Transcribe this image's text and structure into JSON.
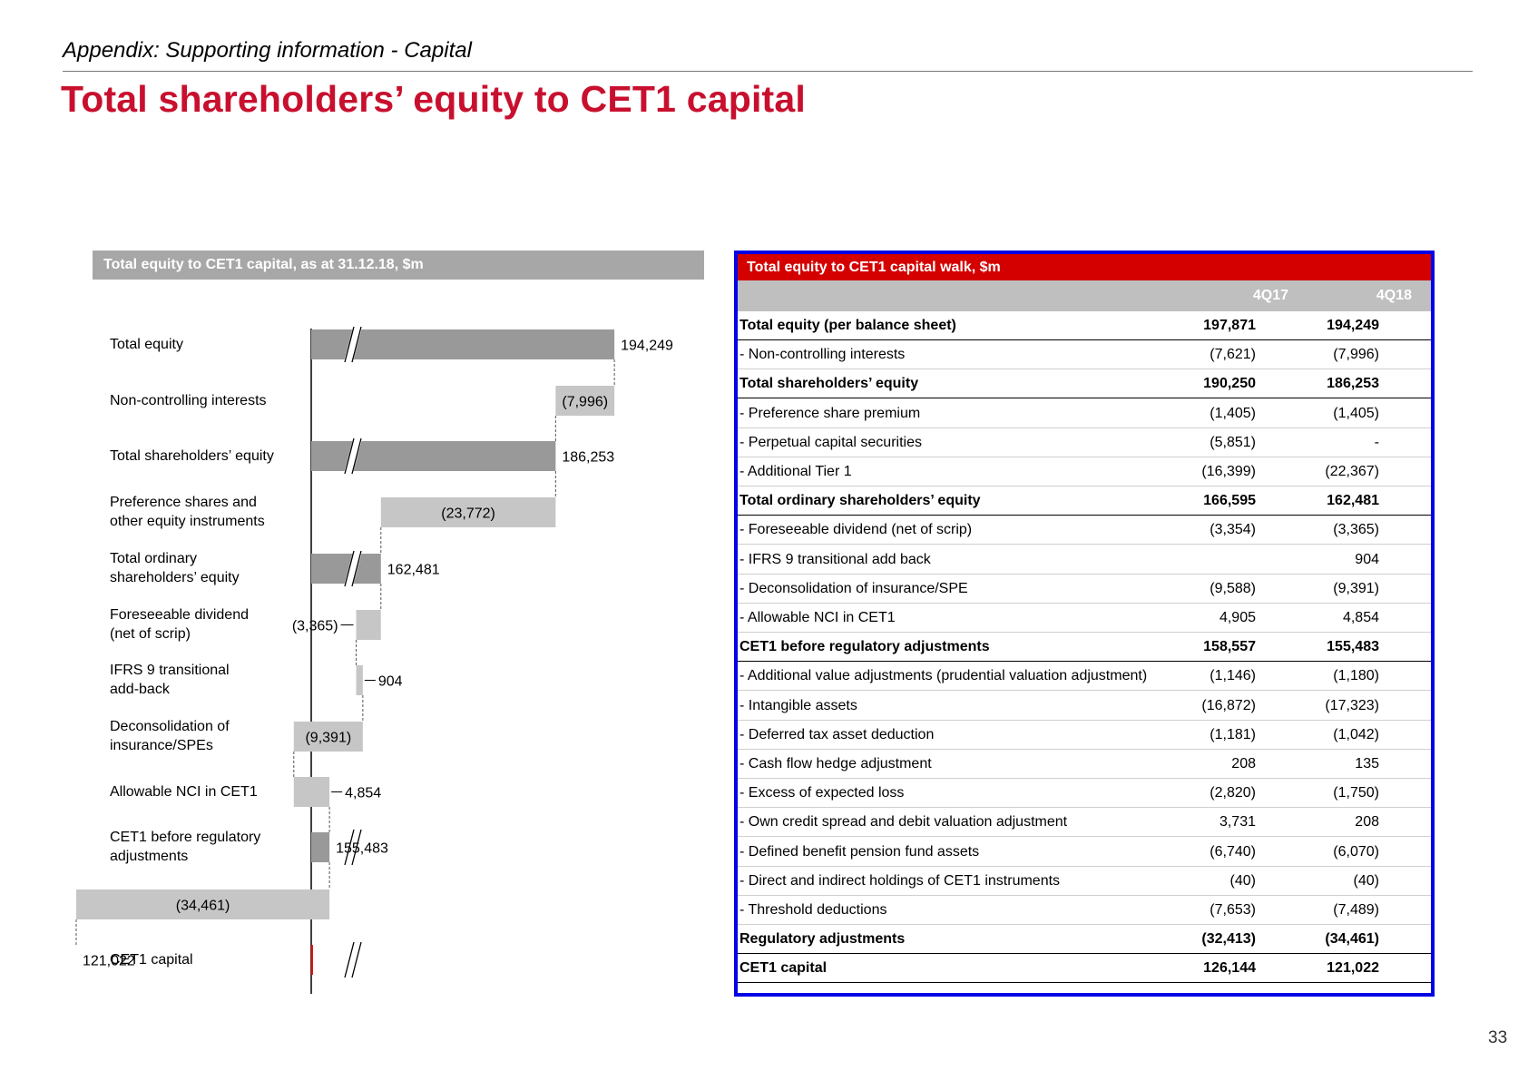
{
  "header": {
    "section": "Appendix: Supporting information - Capital",
    "title": "Total shareholders’ equity to CET1 capital"
  },
  "page_number": "33",
  "colors": {
    "title_red": "#c8102e",
    "bar_dark": "#999999",
    "bar_light": "#c6c6c6",
    "bar_cet1": "#ff0000",
    "table_header": "#d40000",
    "panel_border": "#0000e6"
  },
  "left_panel": {
    "header": "Total equity to CET1 capital, as at 31.12.18, $m"
  },
  "chart_data": {
    "type": "bar",
    "orientation": "horizontal-waterfall",
    "title": "Total equity to CET1 capital, as at 31.12.18, $m",
    "axis_break": true,
    "categories": [
      "Total equity",
      "Non-controlling interests",
      "Total shareholders’ equity",
      "Preference shares and other equity instruments",
      "Total ordinary shareholders’ equity",
      "Foreseeable dividend (net of scrip)",
      "IFRS 9 transitional add-back",
      "Deconsolidation of insurance/SPEs",
      "Allowable NCI in CET1",
      "CET1 before regulatory adjustments",
      "Regulatory adjustments",
      "CET1 capital"
    ],
    "label_lines": [
      [
        "Total equity"
      ],
      [
        "Non-controlling interests"
      ],
      [
        "Total shareholders’ equity"
      ],
      [
        "Preference shares and",
        "other equity instruments"
      ],
      [
        "Total ordinary",
        "shareholders’ equity"
      ],
      [
        "Foreseeable dividend",
        "(net of scrip)"
      ],
      [
        "IFRS 9 transitional",
        "add-back"
      ],
      [
        "Deconsolidation of",
        "insurance/SPEs"
      ],
      [
        "Allowable NCI in CET1"
      ],
      [
        "CET1 before regulatory",
        "adjustments"
      ],
      [
        "Regulatory adjustments"
      ],
      [
        "CET1 capital"
      ]
    ],
    "values": [
      194249,
      -7996,
      186253,
      -23772,
      162481,
      -3365,
      904,
      -9391,
      4854,
      155483,
      -34461,
      121022
    ],
    "value_labels": [
      "194,249",
      "(7,996)",
      "186,253",
      "(23,772)",
      "162,481",
      "(3,365)",
      "904",
      "(9,391)",
      "4,854",
      "155,483",
      "(34,461)",
      "121,022"
    ],
    "kinds": [
      "total",
      "delta",
      "total",
      "delta",
      "total",
      "delta",
      "delta",
      "delta",
      "delta",
      "total",
      "delta",
      "final"
    ]
  },
  "right_panel": {
    "header": "Total equity to CET1 capital walk, $m",
    "columns": [
      "4Q17",
      "4Q18"
    ],
    "rows": [
      {
        "label": "Total equity (per balance sheet)",
        "v1": "197,871",
        "v2": "194,249",
        "bold": true
      },
      {
        "label": "- Non-controlling interests",
        "v1": "(7,621)",
        "v2": "(7,996)",
        "bold": false
      },
      {
        "label": "Total shareholders’ equity",
        "v1": "190,250",
        "v2": "186,253",
        "bold": true
      },
      {
        "label": "- Preference share premium",
        "v1": "(1,405)",
        "v2": "(1,405)",
        "bold": false
      },
      {
        "label": "- Perpetual capital securities",
        "v1": "(5,851)",
        "v2": "-",
        "bold": false
      },
      {
        "label": "- Additional Tier 1",
        "v1": "(16,399)",
        "v2": "(22,367)",
        "bold": false
      },
      {
        "label": "Total ordinary shareholders’ equity",
        "v1": "166,595",
        "v2": "162,481",
        "bold": true
      },
      {
        "label": "- Foreseeable dividend (net of scrip)",
        "v1": "(3,354)",
        "v2": "(3,365)",
        "bold": false
      },
      {
        "label": "- IFRS 9 transitional add back",
        "v1": "",
        "v2": "904",
        "bold": false
      },
      {
        "label": "- Deconsolidation of insurance/SPE",
        "v1": "(9,588)",
        "v2": "(9,391)",
        "bold": false
      },
      {
        "label": "- Allowable NCI in CET1",
        "v1": "4,905",
        "v2": "4,854",
        "bold": false
      },
      {
        "label": "CET1 before regulatory adjustments",
        "v1": "158,557",
        "v2": "155,483",
        "bold": true
      },
      {
        "label": "- Additional value adjustments (prudential valuation adjustment)",
        "v1": "(1,146)",
        "v2": "(1,180)",
        "bold": false
      },
      {
        "label": "- Intangible assets",
        "v1": "(16,872)",
        "v2": "(17,323)",
        "bold": false
      },
      {
        "label": "- Deferred tax asset deduction",
        "v1": "(1,181)",
        "v2": "(1,042)",
        "bold": false
      },
      {
        "label": "- Cash flow hedge adjustment",
        "v1": "208",
        "v2": "135",
        "bold": false
      },
      {
        "label": "- Excess of expected loss",
        "v1": "(2,820)",
        "v2": "(1,750)",
        "bold": false
      },
      {
        "label": "- Own credit spread and debit valuation adjustment",
        "v1": "3,731",
        "v2": "208",
        "bold": false
      },
      {
        "label": "- Defined benefit pension fund assets",
        "v1": "(6,740)",
        "v2": "(6,070)",
        "bold": false
      },
      {
        "label": "- Direct and indirect holdings of CET1 instruments",
        "v1": "(40)",
        "v2": "(40)",
        "bold": false
      },
      {
        "label": "- Threshold deductions",
        "v1": "(7,653)",
        "v2": "(7,489)",
        "bold": false
      },
      {
        "label": "Regulatory adjustments",
        "v1": "(32,413)",
        "v2": "(34,461)",
        "bold": true
      },
      {
        "label": "CET1 capital",
        "v1": "126,144",
        "v2": "121,022",
        "bold": true
      }
    ]
  }
}
